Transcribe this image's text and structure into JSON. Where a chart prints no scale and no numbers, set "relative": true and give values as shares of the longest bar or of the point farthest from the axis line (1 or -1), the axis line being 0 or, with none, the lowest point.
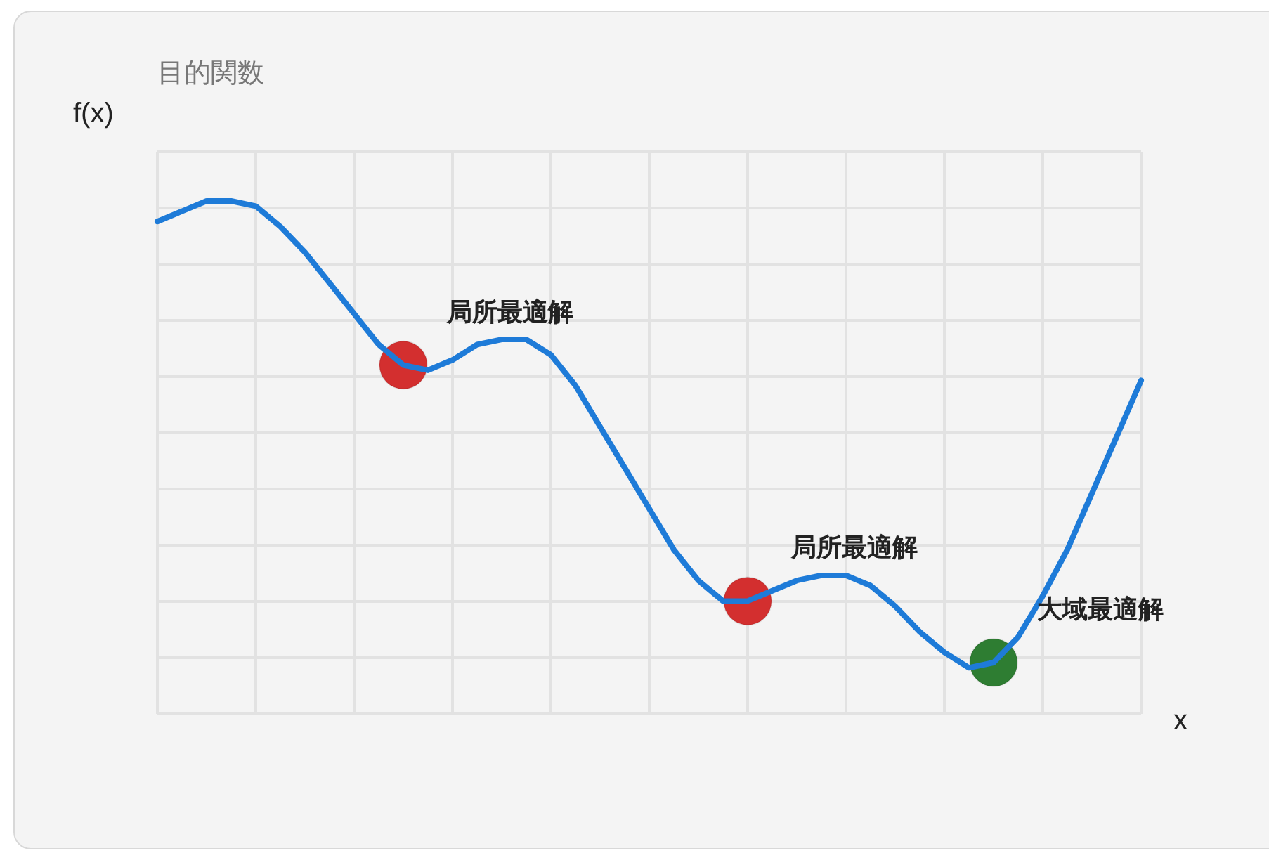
{
  "chart_data": {
    "type": "line",
    "title": "目的関数",
    "xlabel": "x",
    "ylabel": "f(x)",
    "relative": true,
    "grid": true,
    "categories": [
      null,
      null,
      null,
      null,
      null,
      null,
      null,
      null,
      null,
      null,
      null,
      null,
      null,
      null,
      null,
      null,
      null,
      null,
      null,
      null,
      null,
      null,
      null,
      null,
      null,
      null,
      null,
      null,
      null,
      null,
      null,
      null,
      null,
      null,
      null,
      null,
      null,
      null,
      null,
      null,
      null
    ],
    "series": [
      {
        "color": "#1e7bd8",
        "values": [
          0.96,
          0.98,
          1.0,
          1.0,
          0.99,
          0.95,
          0.9,
          0.84,
          0.78,
          0.72,
          0.68,
          0.67,
          0.69,
          0.72,
          0.73,
          0.73,
          0.7,
          0.64,
          0.56,
          0.48,
          0.4,
          0.32,
          0.26,
          0.22,
          0.22,
          0.24,
          0.26,
          0.27,
          0.27,
          0.25,
          0.21,
          0.16,
          0.12,
          0.09,
          0.1,
          0.15,
          0.23,
          0.32,
          0.43,
          0.54,
          0.65
        ],
        "colors": [
          null,
          null,
          null,
          null,
          null,
          null,
          null,
          null,
          null,
          null,
          "#d32f2f",
          null,
          null,
          null,
          null,
          null,
          null,
          null,
          null,
          null,
          null,
          null,
          null,
          null,
          "#d32f2f",
          null,
          null,
          null,
          null,
          null,
          null,
          null,
          null,
          null,
          "#2e7d32",
          null,
          null,
          null,
          null,
          null,
          null
        ]
      }
    ],
    "annotations": [
      "局所最適解",
      "局所最適解",
      "大域最適解"
    ]
  }
}
